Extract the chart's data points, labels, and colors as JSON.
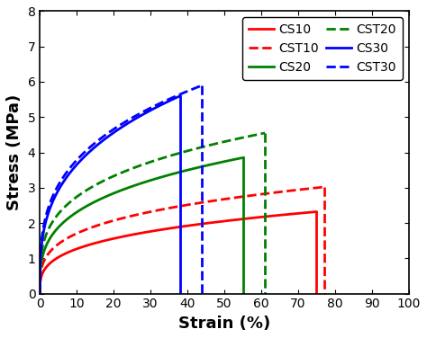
{
  "title": "",
  "xlabel": "Strain (%)",
  "ylabel": "Stress (MPa)",
  "xlim": [
    0,
    100
  ],
  "ylim": [
    0,
    8
  ],
  "xticks": [
    0,
    10,
    20,
    30,
    40,
    50,
    60,
    70,
    80,
    90,
    100
  ],
  "yticks": [
    0,
    1,
    2,
    3,
    4,
    5,
    6,
    7,
    8
  ],
  "curves": [
    {
      "name": "CS10",
      "color": "#ff0000",
      "linestyle": "solid",
      "strain_end": 75,
      "stress_peak": 2.32,
      "power": 0.3
    },
    {
      "name": "CST10",
      "color": "#ff0000",
      "linestyle": "dashed",
      "strain_end": 77,
      "stress_peak": 3.02,
      "power": 0.28
    },
    {
      "name": "CS20",
      "color": "#008000",
      "linestyle": "solid",
      "strain_end": 55,
      "stress_peak": 3.85,
      "power": 0.3
    },
    {
      "name": "CST20",
      "color": "#008000",
      "linestyle": "dashed",
      "strain_end": 61,
      "stress_peak": 4.55,
      "power": 0.28
    },
    {
      "name": "CS30",
      "color": "#0000ff",
      "linestyle": "solid",
      "strain_end": 38,
      "stress_peak": 5.6,
      "power": 0.32
    },
    {
      "name": "CST30",
      "color": "#0000ff",
      "linestyle": "dashed",
      "strain_end": 44,
      "stress_peak": 5.9,
      "power": 0.3
    }
  ],
  "linewidth": 2.0,
  "legend_fontsize": 10,
  "axis_label_fontsize": 13,
  "tick_fontsize": 10,
  "background_color": "#ffffff"
}
